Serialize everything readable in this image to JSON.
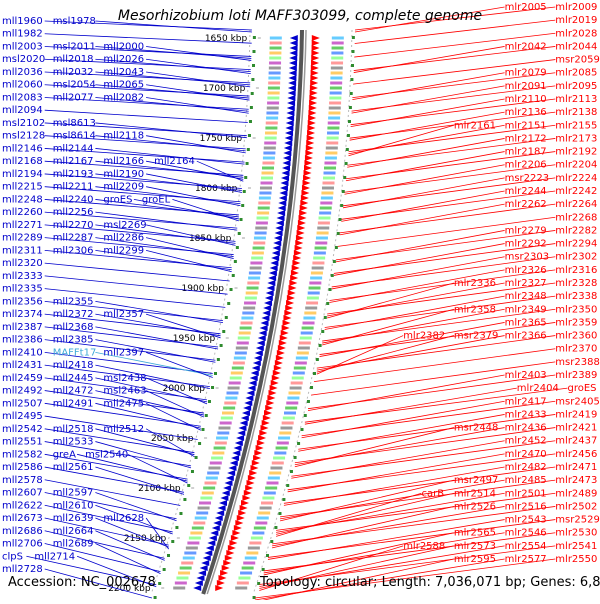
{
  "title": "Mesorhizobium loti MAFF303099, complete genome",
  "footer": {
    "accession": "Accession: NC_002678",
    "info": "Topology: circular; Length: 7,036,071 bp; Genes: 6,800"
  },
  "colors": {
    "minus": "#0000cc",
    "plus": "#ff0000",
    "highlight": "#3fa9d8",
    "scale": "#000000",
    "tick": "#2e8b2e"
  },
  "scale_labels": [
    "1650 kbp",
    "1700 kbp",
    "1750 kbp",
    "1800 kbp",
    "1850 kbp",
    "1900 kbp",
    "1950 kbp",
    "2000 kbp",
    "2050 kbp",
    "2100 kbp",
    "2150 kbp",
    "2200 kbp"
  ],
  "left_labels": [
    [
      "mll1960",
      "msl1978"
    ],
    [
      "mll1982"
    ],
    [
      "mll2003",
      "msl2011",
      "mll2000"
    ],
    [
      "msl2020",
      "mll2018",
      "mll2026"
    ],
    [
      "mll2036",
      "mll2032",
      "mll2043"
    ],
    [
      "mll2060",
      "msl2054",
      "mll2065"
    ],
    [
      "mll2083",
      "mll2077",
      "mll2082"
    ],
    [
      "mll2094"
    ],
    [
      "msl2102",
      "msl8613"
    ],
    [
      "msl2128",
      "msl8614",
      "mll2118"
    ],
    [
      "mll2146",
      "mll2144"
    ],
    [
      "mll2168",
      "mll2167",
      "mll2166",
      "mll2164"
    ],
    [
      "mll2194",
      "mll2193",
      "mll2190"
    ],
    [
      "mll2215",
      "mll2211",
      "mll2209"
    ],
    [
      "mll2248",
      "mll2240",
      "groES",
      "groEL"
    ],
    [
      "mll2260",
      "mll2256"
    ],
    [
      "mll2271",
      "mll2270",
      "msl2269"
    ],
    [
      "mll2289",
      "mll2287",
      "mll2286"
    ],
    [
      "mll2311",
      "mll2306",
      "mll2299"
    ],
    [
      "mll2320"
    ],
    [
      "mll2333"
    ],
    [
      "mll2335"
    ],
    [
      "mll2356",
      "mll2355"
    ],
    [
      "mll2374",
      "mll2372",
      "mll2357"
    ],
    [
      "mll2387",
      "mll2368"
    ],
    [
      "mll2386",
      "mll2385"
    ],
    [
      "mll2410",
      "MAFFt17",
      "mll2397"
    ],
    [
      "mll2431",
      "mll2418"
    ],
    [
      "mll2459",
      "mll2445",
      "msl2438"
    ],
    [
      "mll2492",
      "mll2472",
      "msl2463"
    ],
    [
      "mll2507",
      "mll2491",
      "mll2475"
    ],
    [
      "mll2495"
    ],
    [
      "mll2542",
      "mll2518",
      "mll2512"
    ],
    [
      "mll2551",
      "mll2533"
    ],
    [
      "mll2582",
      "greA",
      "msl2540"
    ],
    [
      "mll2586",
      "mll2561"
    ],
    [
      "mll2578"
    ],
    [
      "mll2607",
      "mll2597"
    ],
    [
      "mll2622",
      "mll2610"
    ],
    [
      "mll2673",
      "mll2639",
      "mll2628"
    ],
    [
      "mll2686",
      "mll2664"
    ],
    [
      "mll2706",
      "mll2689"
    ],
    [
      "clpS",
      "mll2714"
    ],
    [
      "mll2728"
    ]
  ],
  "right_labels": [
    [
      "mlr2005",
      "mlr2009"
    ],
    [
      "mlr2019"
    ],
    [
      "mlr2028"
    ],
    [
      "mlr2042",
      "mlr2044"
    ],
    [
      "msr2059"
    ],
    [
      "mlr2079",
      "mlr2085"
    ],
    [
      "mlr2091",
      "mlr2095"
    ],
    [
      "mlr2110",
      "mlr2113"
    ],
    [
      "mlr2136",
      "mlr2138"
    ],
    [
      "mlr2161",
      "mlr2151",
      "mlr2155"
    ],
    [
      "mlr2172",
      "mlr2173"
    ],
    [
      "mlr2187",
      "mlr2192"
    ],
    [
      "mlr2206",
      "mlr2204"
    ],
    [
      "msr2223",
      "mlr2224"
    ],
    [
      "mlr2244",
      "mlr2242"
    ],
    [
      "mlr2262",
      "mlr2264"
    ],
    [
      "mlr2268"
    ],
    [
      "mlr2279",
      "mlr2282"
    ],
    [
      "mlr2292",
      "mlr2294"
    ],
    [
      "msr2303",
      "mlr2302"
    ],
    [
      "mlr2326",
      "mlr2316"
    ],
    [
      "mlr2336",
      "mlr2327",
      "mlr2328"
    ],
    [
      "mlr2348",
      "mlr2338"
    ],
    [
      "mlr2358",
      "mlr2349",
      "mlr2350"
    ],
    [
      "mlr2365",
      "mlr2359"
    ],
    [
      "mlr2382",
      "msr2379",
      "mlr2366",
      "mlr2360"
    ],
    [
      "mlr2370"
    ],
    [
      "msr2388"
    ],
    [
      "mlr2403",
      "mlr2389"
    ],
    [
      "mlr2404",
      "groES"
    ],
    [
      "mlr2417",
      "msr2405"
    ],
    [
      "mlr2433",
      "mlr2419"
    ],
    [
      "msr2448",
      "mlr2436",
      "mlr2421"
    ],
    [
      "mlr2452",
      "mlr2437"
    ],
    [
      "mlr2470",
      "mlr2456"
    ],
    [
      "mlr2482",
      "mlr2471"
    ],
    [
      "msr2497",
      "mlr2485",
      "mlr2473"
    ],
    [
      "carB",
      "mlr2514",
      "mlr2501",
      "mlr2489"
    ],
    [
      "mlr2526",
      "mlr2516",
      "mlr2502"
    ],
    [
      "mlr2543",
      "msr2529"
    ],
    [
      "mlr2565",
      "mlr2546",
      "mlr2530"
    ],
    [
      "mlr2588",
      "mlr2573",
      "mlr2554",
      "mlr2541"
    ],
    [
      "mlr2595",
      "mlr2577",
      "mlr2550"
    ]
  ]
}
